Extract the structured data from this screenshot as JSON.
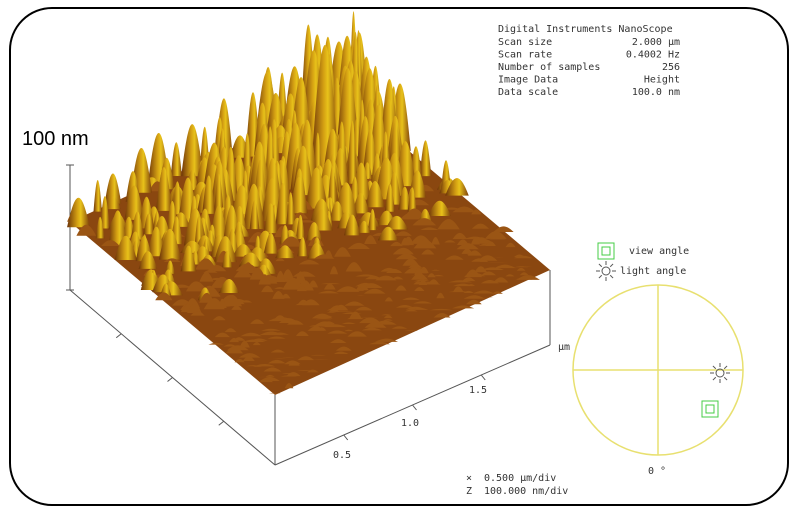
{
  "header": {
    "title": "Digital Instruments NanoScope"
  },
  "info": {
    "rows": [
      [
        "Scan size",
        "2.000 µm"
      ],
      [
        "Scan rate",
        "0.4002 Hz"
      ],
      [
        "Number of samples",
        "256"
      ],
      [
        "Image Data",
        "Height"
      ],
      [
        "Data scale",
        "100.0 nm"
      ]
    ]
  },
  "z_scale_label": "100 nm",
  "axis": {
    "unit": "µm",
    "ticks": [
      "0.5",
      "1.0",
      "1.5"
    ]
  },
  "legend": {
    "view": "view angle",
    "light": "light angle"
  },
  "angle_label": "0 °",
  "footer": {
    "x": [
      "×",
      "0.500 µm/div"
    ],
    "z": [
      "Z",
      "100.000 nm/div"
    ]
  }
}
